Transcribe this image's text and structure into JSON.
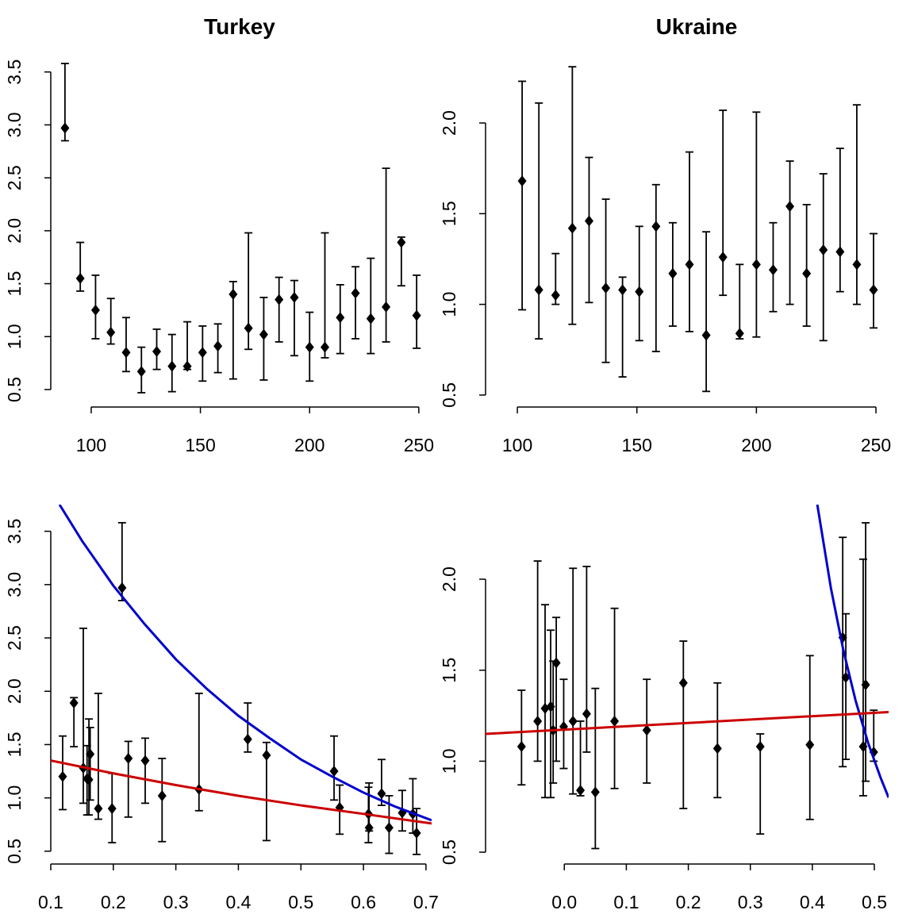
{
  "chart_data": [
    {
      "type": "errorbar",
      "title": "Turkey",
      "x": [
        88,
        95,
        102,
        109,
        116,
        123,
        130,
        137,
        144,
        151,
        158,
        165,
        172,
        179,
        186,
        193,
        200,
        207,
        214,
        221,
        228,
        235,
        242,
        249
      ],
      "values": [
        2.97,
        1.55,
        1.25,
        1.04,
        0.85,
        0.67,
        0.86,
        0.72,
        0.72,
        0.85,
        0.91,
        1.4,
        1.08,
        1.02,
        1.35,
        1.37,
        0.9,
        0.9,
        1.18,
        1.41,
        1.17,
        1.28,
        1.89,
        1.2
      ],
      "lower": [
        2.85,
        1.43,
        0.98,
        0.93,
        0.67,
        0.47,
        0.69,
        0.48,
        0.69,
        0.58,
        0.66,
        0.6,
        0.88,
        0.59,
        0.95,
        0.82,
        0.58,
        0.8,
        0.84,
        0.98,
        0.84,
        0.95,
        1.48,
        0.89
      ],
      "upper": [
        3.58,
        1.89,
        1.58,
        1.36,
        1.18,
        0.9,
        1.07,
        1.02,
        1.14,
        1.1,
        1.12,
        1.52,
        1.98,
        1.37,
        1.56,
        1.53,
        1.23,
        1.98,
        1.49,
        1.66,
        1.74,
        2.59,
        1.94,
        1.58
      ],
      "color": "#000000",
      "xlim": [
        81.5,
        254.4
      ],
      "ylim": [
        0.335,
        3.73
      ],
      "xticks": [
        100,
        150,
        200,
        250
      ],
      "yticks": [
        0.5,
        {
          "value": 1,
          "label": "1.0"
        },
        1.5,
        {
          "value": 2,
          "label": "2.0"
        },
        2.5,
        {
          "value": 3,
          "label": "3.0"
        },
        3.5
      ]
    },
    {
      "type": "errorbar",
      "title": "Ukraine",
      "x": [
        102,
        109,
        116,
        123,
        130,
        137,
        144,
        151,
        158,
        165,
        172,
        179,
        186,
        193,
        200,
        207,
        214,
        221,
        228,
        235,
        242,
        249
      ],
      "values": [
        1.68,
        1.08,
        1.05,
        1.42,
        1.46,
        1.09,
        1.08,
        1.07,
        1.43,
        1.17,
        1.22,
        0.83,
        1.26,
        0.84,
        1.22,
        1.19,
        1.54,
        1.17,
        1.3,
        1.29,
        1.22,
        1.08
      ],
      "lower": [
        0.97,
        0.81,
        1.0,
        0.89,
        1.01,
        0.68,
        0.6,
        0.8,
        0.74,
        0.88,
        0.85,
        0.52,
        1.05,
        0.81,
        0.82,
        0.96,
        1.0,
        0.88,
        0.8,
        1.07,
        1.0,
        0.87
      ],
      "upper": [
        2.23,
        2.11,
        1.28,
        2.31,
        1.81,
        1.58,
        1.15,
        1.43,
        1.66,
        1.45,
        1.84,
        1.4,
        2.07,
        1.22,
        2.06,
        1.45,
        1.79,
        1.55,
        1.72,
        1.86,
        2.1,
        1.39
      ],
      "color": "#000000",
      "xlim": [
        86.7,
        255.3
      ],
      "ylim": [
        0.434,
        2.35
      ],
      "xticks": [
        100,
        150,
        200,
        250
      ],
      "yticks": [
        0.5,
        {
          "value": 1,
          "label": "1.0"
        },
        1.5,
        {
          "value": 2,
          "label": "2.0"
        }
      ]
    },
    {
      "type": "errorbar",
      "x": [
        0.119,
        0.137,
        0.152,
        0.158,
        0.161,
        0.163,
        0.176,
        0.198,
        0.214,
        0.224,
        0.251,
        0.278,
        0.337,
        0.415,
        0.445,
        0.553,
        0.562,
        0.608,
        0.609,
        0.629,
        0.641,
        0.662,
        0.679,
        0.685
      ],
      "values": [
        1.2,
        1.89,
        1.28,
        1.18,
        1.17,
        1.41,
        0.9,
        0.9,
        2.97,
        1.37,
        1.35,
        1.02,
        1.08,
        1.55,
        1.4,
        1.25,
        0.91,
        0.85,
        0.72,
        1.04,
        0.72,
        0.86,
        0.85,
        0.67
      ],
      "lower": [
        0.89,
        1.48,
        0.95,
        0.84,
        0.84,
        0.98,
        0.8,
        0.58,
        2.85,
        0.82,
        0.95,
        0.59,
        0.88,
        1.43,
        0.6,
        0.98,
        0.66,
        0.58,
        0.69,
        0.93,
        0.48,
        0.69,
        0.67,
        0.47
      ],
      "upper": [
        1.58,
        1.94,
        2.59,
        1.49,
        1.74,
        1.66,
        1.98,
        1.23,
        3.58,
        1.53,
        1.56,
        1.37,
        1.98,
        1.89,
        1.52,
        1.58,
        1.12,
        1.1,
        1.14,
        1.36,
        1.02,
        1.07,
        1.18,
        0.9
      ],
      "color": "#000000",
      "curves": [
        {
          "color": "#0000cc",
          "x": [
            0.114,
            0.15,
            0.2,
            0.25,
            0.3,
            0.35,
            0.4,
            0.45,
            0.5,
            0.55,
            0.6,
            0.65,
            0.709
          ],
          "values": [
            3.75,
            3.41,
            2.99,
            2.63,
            2.3,
            2.02,
            1.77,
            1.56,
            1.36,
            1.2,
            1.05,
            0.92,
            0.79
          ]
        },
        {
          "color": "#cc0000",
          "x": [
            0.1,
            0.2,
            0.3,
            0.4,
            0.5,
            0.6,
            0.709
          ],
          "values": [
            1.35,
            1.23,
            1.12,
            1.02,
            0.93,
            0.85,
            0.76
          ]
        }
      ],
      "xlim": [
        0.1,
        0.709
      ],
      "ylim": [
        0.38,
        3.75
      ],
      "xticks": [
        0.1,
        0.2,
        0.3,
        0.4,
        0.5,
        0.6,
        0.7
      ],
      "yticks": [
        0.5,
        {
          "value": 1,
          "label": "1.0"
        },
        1.5,
        {
          "value": 2,
          "label": "2.0"
        },
        2.5,
        {
          "value": 3,
          "label": "3.0"
        },
        3.5
      ]
    },
    {
      "type": "errorbar",
      "x": [
        -0.069,
        -0.043,
        -0.031,
        -0.022,
        -0.018,
        -0.013,
        -0.001,
        0.014,
        0.026,
        0.036,
        0.05,
        0.081,
        0.133,
        0.192,
        0.247,
        0.316,
        0.396,
        0.449,
        0.454,
        0.482,
        0.486,
        0.499
      ],
      "values": [
        1.08,
        1.22,
        1.29,
        1.3,
        1.17,
        1.54,
        1.19,
        1.22,
        0.84,
        1.26,
        0.83,
        1.22,
        1.17,
        1.43,
        1.07,
        1.08,
        1.09,
        1.68,
        1.46,
        1.08,
        1.42,
        1.05
      ],
      "lower": [
        0.87,
        1.0,
        0.8,
        0.8,
        0.88,
        1.0,
        0.96,
        0.82,
        0.81,
        1.05,
        0.52,
        0.85,
        0.88,
        0.74,
        0.8,
        0.6,
        0.68,
        0.97,
        1.01,
        0.81,
        0.89,
        1.0
      ],
      "upper": [
        1.39,
        2.1,
        1.86,
        1.72,
        1.55,
        1.79,
        1.45,
        2.06,
        1.22,
        2.07,
        1.4,
        1.84,
        1.45,
        1.66,
        1.43,
        1.15,
        1.58,
        2.23,
        1.81,
        2.11,
        2.31,
        1.28
      ],
      "color": "#000000",
      "curves": [
        {
          "color": "#0000cc",
          "x": [
            0.408,
            0.43,
            0.45,
            0.47,
            0.49,
            0.51,
            0.523
          ],
          "values": [
            2.41,
            1.95,
            1.61,
            1.33,
            1.1,
            0.91,
            0.8
          ]
        },
        {
          "color": "#cc0000",
          "x": [
            -0.127,
            0.523
          ],
          "values": [
            1.15,
            1.27
          ]
        }
      ],
      "xlim": [
        -0.127,
        0.523
      ],
      "ylim": [
        0.435,
        2.41
      ],
      "xticks": [
        {
          "value": 0,
          "label": "0.0"
        },
        0.1,
        0.2,
        0.3,
        0.4,
        0.5
      ],
      "yticks": [
        0.5,
        {
          "value": 1,
          "label": "1.0"
        },
        1.5,
        {
          "value": 2,
          "label": "2.0"
        }
      ]
    }
  ]
}
